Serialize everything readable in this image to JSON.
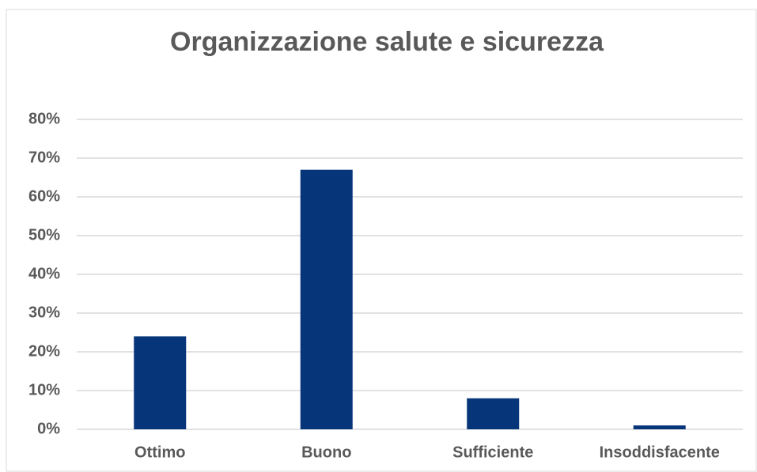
{
  "chart_data": {
    "type": "bar",
    "title": "Organizzazione salute e sicurezza",
    "categories": [
      "Ottimo",
      "Buono",
      "Sufficiente",
      "Insoddisfacente"
    ],
    "values": [
      24,
      67,
      8,
      1
    ],
    "color": "#06357a",
    "ylim": [
      0,
      80
    ],
    "yticks": [
      {
        "value": 0,
        "label": "0%"
      },
      {
        "value": 10,
        "label": "10%"
      },
      {
        "value": 20,
        "label": "20%"
      },
      {
        "value": 30,
        "label": "30%"
      },
      {
        "value": 40,
        "label": "40%"
      },
      {
        "value": 50,
        "label": "50%"
      },
      {
        "value": 60,
        "label": "60%"
      },
      {
        "value": 70,
        "label": "70%"
      },
      {
        "value": 80,
        "label": "80%"
      }
    ],
    "grid": true
  }
}
